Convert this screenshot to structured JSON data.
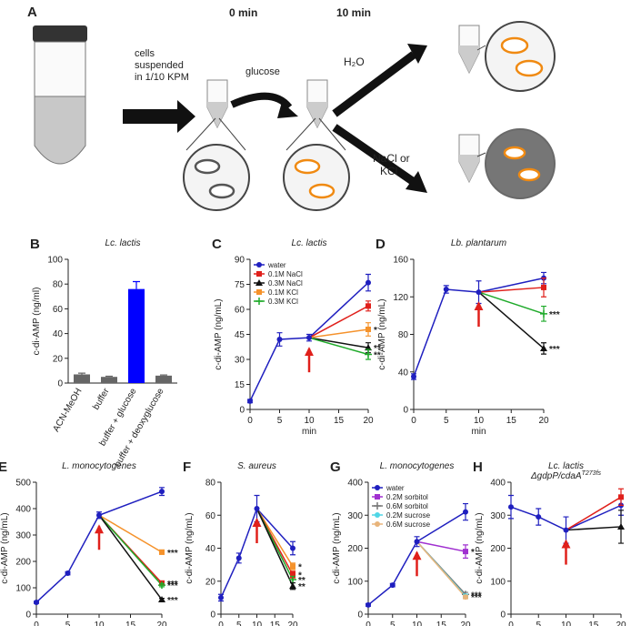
{
  "diagram": {
    "label": "A",
    "time0": "0 min",
    "time10": "10 min",
    "cells_text": [
      "cells",
      "suspended",
      "in 1/10 KPM"
    ],
    "glucose": "glucose",
    "water": "H₂O",
    "salt_text": [
      "NaCl or",
      "KCl"
    ]
  },
  "chart_data": [
    {
      "type": "bar",
      "label": "B",
      "title": "Lc. lactis",
      "ylabel": "c-di-AMP (ng/ml)",
      "categories": [
        "ACN-MeOH",
        "buffer",
        "buffer + glucose",
        "buffer + deoxyglucose"
      ],
      "values": [
        7,
        5,
        76,
        6
      ],
      "errors": [
        1,
        0.5,
        6,
        0.5
      ],
      "colors": [
        "#666666",
        "#666666",
        "#0000ff",
        "#666666"
      ],
      "ylim": [
        0,
        100
      ],
      "yticks": [
        0,
        20,
        40,
        60,
        80,
        100
      ]
    },
    {
      "type": "line",
      "label": "C",
      "title": "Lc. lactis",
      "ylabel": "c-di-AMP (ng/mL)",
      "xlabel": "min",
      "x": [
        0,
        5,
        10,
        20
      ],
      "xlim": [
        0,
        20
      ],
      "xticks": [
        0,
        5,
        10,
        15,
        20
      ],
      "ylim": [
        0,
        90
      ],
      "yticks": [
        0,
        15,
        30,
        45,
        60,
        75,
        90
      ],
      "arrow_x": 10,
      "legend": "upper left",
      "series": [
        {
          "name": "water",
          "color": "#1f1fbf",
          "marker": "circle",
          "values": [
            5,
            42,
            43,
            76
          ],
          "errors": [
            1,
            4,
            2,
            5
          ]
        },
        {
          "name": "0.1M NaCl",
          "color": "#e0201b",
          "marker": "square",
          "values": [
            null,
            null,
            43,
            62
          ],
          "errors": [
            null,
            null,
            null,
            3
          ]
        },
        {
          "name": "0.3M NaCl",
          "color": "#111111",
          "marker": "triangle",
          "values": [
            null,
            null,
            43,
            37
          ],
          "errors": [
            null,
            null,
            null,
            3
          ],
          "significance": "**"
        },
        {
          "name": "0.1M KCl",
          "color": "#f5922b",
          "marker": "square",
          "values": [
            null,
            null,
            43,
            48
          ],
          "errors": [
            null,
            null,
            null,
            4
          ],
          "significance": "*"
        },
        {
          "name": "0.3M KCl",
          "color": "#1faa2a",
          "marker": "plus",
          "values": [
            null,
            null,
            43,
            33
          ],
          "errors": [
            null,
            null,
            null,
            3
          ],
          "significance": "**"
        }
      ]
    },
    {
      "type": "line",
      "label": "D",
      "title": "Lb. plantarum",
      "ylabel": "c-di-AMP (ng/mL)",
      "xlabel": "min",
      "x": [
        0,
        5,
        10,
        20
      ],
      "xlim": [
        0,
        20
      ],
      "xticks": [
        0,
        5,
        10,
        15,
        20
      ],
      "ylim": [
        0,
        160
      ],
      "yticks": [
        0,
        40,
        80,
        120,
        160
      ],
      "arrow_x": 10,
      "series": [
        {
          "color": "#1f1fbf",
          "marker": "circle",
          "values": [
            35,
            128,
            125,
            140
          ],
          "errors": [
            3,
            4,
            12,
            6
          ]
        },
        {
          "color": "#e0201b",
          "marker": "square",
          "values": [
            null,
            null,
            125,
            130
          ],
          "errors": [
            null,
            null,
            null,
            10
          ]
        },
        {
          "color": "#1faa2a",
          "marker": "plus",
          "values": [
            null,
            null,
            125,
            102
          ],
          "errors": [
            null,
            null,
            null,
            8
          ],
          "significance": "***"
        },
        {
          "color": "#111111",
          "marker": "triangle",
          "values": [
            null,
            null,
            125,
            65
          ],
          "errors": [
            null,
            null,
            null,
            6
          ],
          "significance": "***"
        }
      ]
    },
    {
      "type": "line",
      "label": "E",
      "title": "L. monocytogenes",
      "ylabel": "c-di-AMP (ng/mL)",
      "xlabel": "min",
      "x": [
        0,
        5,
        10,
        20
      ],
      "xlim": [
        0,
        20
      ],
      "xticks": [
        0,
        5,
        10,
        15,
        20
      ],
      "ylim": [
        0,
        500
      ],
      "yticks": [
        0,
        100,
        200,
        300,
        400,
        500
      ],
      "arrow_x": 10,
      "series": [
        {
          "color": "#1f1fbf",
          "marker": "circle",
          "values": [
            45,
            155,
            375,
            465
          ],
          "errors": [
            4,
            6,
            12,
            15
          ]
        },
        {
          "color": "#f5922b",
          "marker": "square",
          "values": [
            null,
            null,
            375,
            235
          ],
          "errors": [
            null,
            null,
            null,
            8
          ],
          "significance": "***"
        },
        {
          "color": "#e0201b",
          "marker": "square",
          "values": [
            null,
            null,
            375,
            118
          ],
          "errors": [
            null,
            null,
            null,
            6
          ],
          "significance": "***"
        },
        {
          "color": "#1faa2a",
          "marker": "plus",
          "values": [
            null,
            null,
            375,
            110
          ],
          "errors": [
            null,
            null,
            null,
            6
          ],
          "significance": "***"
        },
        {
          "color": "#111111",
          "marker": "triangle",
          "values": [
            null,
            null,
            375,
            55
          ],
          "errors": [
            null,
            null,
            null,
            5
          ],
          "significance": "***"
        }
      ]
    },
    {
      "type": "line",
      "label": "F",
      "title": "S. aureus",
      "ylabel": "c-di-AMP (ng/mL)",
      "xlabel": "min",
      "x": [
        0,
        5,
        10,
        20
      ],
      "xlim": [
        0,
        20
      ],
      "xticks": [
        0,
        5,
        10,
        15,
        20
      ],
      "ylim": [
        0,
        80
      ],
      "yticks": [
        0,
        20,
        40,
        60,
        80
      ],
      "arrow_x": 10,
      "series": [
        {
          "color": "#1f1fbf",
          "marker": "circle",
          "values": [
            10,
            34,
            64,
            40
          ],
          "errors": [
            2,
            3,
            8,
            4
          ]
        },
        {
          "color": "#f5922b",
          "marker": "square",
          "values": [
            null,
            null,
            64,
            29
          ],
          "errors": [
            null,
            null,
            null,
            2
          ],
          "significance": "*"
        },
        {
          "color": "#e0201b",
          "marker": "square",
          "values": [
            null,
            null,
            64,
            24
          ],
          "errors": [
            null,
            null,
            null,
            2
          ],
          "significance": "*"
        },
        {
          "color": "#1faa2a",
          "marker": "plus",
          "values": [
            null,
            null,
            64,
            21
          ],
          "errors": [
            null,
            null,
            null,
            2
          ],
          "significance": "**"
        },
        {
          "color": "#111111",
          "marker": "triangle",
          "values": [
            null,
            null,
            64,
            17
          ],
          "errors": [
            null,
            null,
            null,
            2
          ],
          "significance": "**"
        }
      ]
    },
    {
      "type": "line",
      "label": "G",
      "title": "L. monocytogenes",
      "ylabel": "c-di-AMP (ng/mL)",
      "xlabel": "min",
      "x": [
        0,
        5,
        10,
        20
      ],
      "xlim": [
        0,
        20
      ],
      "xticks": [
        0,
        5,
        10,
        15,
        20
      ],
      "ylim": [
        0,
        400
      ],
      "yticks": [
        0,
        100,
        200,
        300,
        400
      ],
      "arrow_x": 10,
      "legend": "upper left",
      "series": [
        {
          "name": "water",
          "color": "#1f1fbf",
          "marker": "circle",
          "values": [
            28,
            88,
            220,
            310
          ],
          "errors": [
            4,
            5,
            15,
            25
          ]
        },
        {
          "name": "0.2M sorbitol",
          "color": "#a030d0",
          "marker": "square",
          "values": [
            null,
            null,
            220,
            190
          ],
          "errors": [
            null,
            null,
            null,
            20
          ],
          "significance": "*"
        },
        {
          "name": "0.6M sorbitol",
          "color": "#777777",
          "marker": "plus",
          "values": [
            null,
            null,
            220,
            60
          ],
          "errors": [
            null,
            null,
            null,
            6
          ],
          "significance": "***"
        },
        {
          "name": "0.2M sucrose",
          "color": "#4fd6e6",
          "marker": "circle",
          "values": [
            null,
            null,
            220,
            55
          ],
          "errors": [
            null,
            null,
            null,
            5
          ]
        },
        {
          "name": "0.6M sucrose",
          "color": "#e8b47a",
          "marker": "circle",
          "values": [
            null,
            null,
            220,
            52
          ],
          "errors": [
            null,
            null,
            null,
            5
          ],
          "significance": "***"
        }
      ]
    },
    {
      "type": "line",
      "label": "H",
      "title": "Lc. lactis",
      "subtitle": "ΔgdpP/cdaA",
      "subtitle_superscript": "T273fs",
      "ylabel": "c-di-AMP (ng/mL)",
      "xlabel": "min",
      "x": [
        0,
        5,
        10,
        20
      ],
      "xlim": [
        0,
        20
      ],
      "xticks": [
        0,
        5,
        10,
        15,
        20
      ],
      "ylim": [
        0,
        400
      ],
      "yticks": [
        0,
        100,
        200,
        300,
        400
      ],
      "arrow_x": 10,
      "series": [
        {
          "color": "#1f1fbf",
          "marker": "circle",
          "values": [
            325,
            295,
            255,
            330
          ],
          "errors": [
            35,
            25,
            40,
            30
          ]
        },
        {
          "color": "#e0201b",
          "marker": "square",
          "values": [
            null,
            null,
            255,
            355
          ],
          "errors": [
            null,
            null,
            null,
            25
          ]
        },
        {
          "color": "#111111",
          "marker": "triangle",
          "values": [
            null,
            null,
            255,
            265
          ],
          "errors": [
            null,
            null,
            null,
            50
          ]
        }
      ]
    }
  ]
}
